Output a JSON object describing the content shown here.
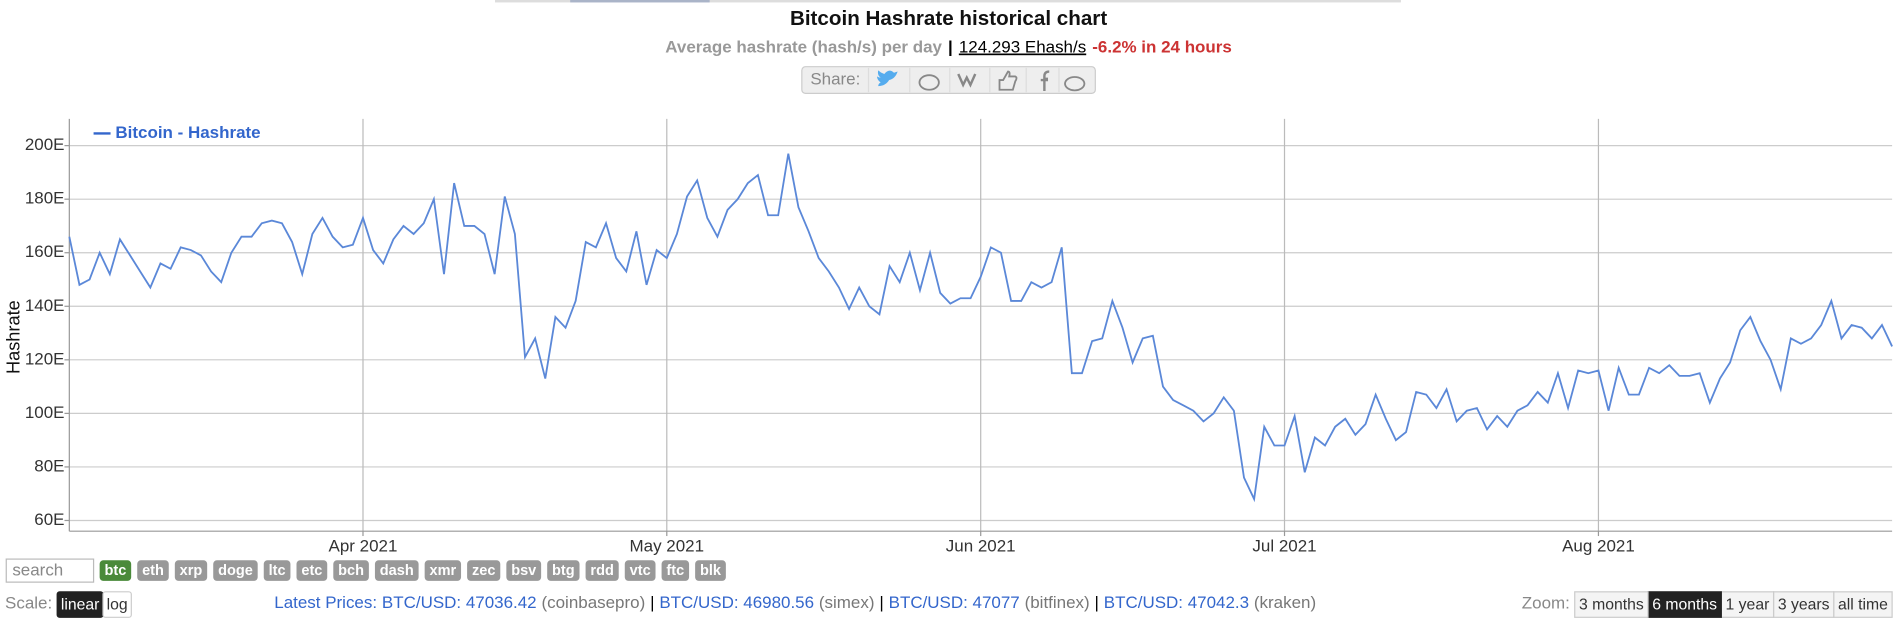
{
  "header": {
    "title": "Bitcoin Hashrate historical chart",
    "subtitle": "Average hashrate (hash/s) per day",
    "separator": "|",
    "current_value": "124.293 Ehash/s",
    "change": "-6.2% in 24 hours"
  },
  "share": {
    "label": "Share:"
  },
  "chart_data": {
    "type": "line",
    "categories": [
      null,
      null,
      null,
      null,
      null,
      null,
      null,
      null,
      null,
      null,
      null,
      null,
      null,
      null,
      null,
      null,
      null,
      null,
      null,
      null,
      null,
      null,
      null,
      null,
      null,
      null,
      null,
      null,
      null,
      "Apr 2021",
      null,
      null,
      null,
      null,
      null,
      null,
      null,
      null,
      null,
      null,
      null,
      null,
      null,
      null,
      null,
      null,
      null,
      null,
      null,
      null,
      null,
      null,
      null,
      null,
      null,
      null,
      null,
      null,
      null,
      "May 2021",
      null,
      null,
      null,
      null,
      null,
      null,
      null,
      null,
      null,
      null,
      null,
      null,
      null,
      null,
      null,
      null,
      null,
      null,
      null,
      null,
      null,
      null,
      null,
      null,
      null,
      null,
      null,
      null,
      null,
      null,
      "Jun 2021",
      null,
      null,
      null,
      null,
      null,
      null,
      null,
      null,
      null,
      null,
      null,
      null,
      null,
      null,
      null,
      null,
      null,
      null,
      null,
      null,
      null,
      null,
      null,
      null,
      null,
      null,
      null,
      null,
      null,
      "Jul 2021",
      null,
      null,
      null,
      null,
      null,
      null,
      null,
      null,
      null,
      null,
      null,
      null,
      null,
      null,
      null,
      null,
      null,
      null,
      null,
      null,
      null,
      null,
      null,
      null,
      null,
      null,
      null,
      null,
      null,
      null,
      "Aug 2021",
      null,
      null,
      null,
      null,
      null,
      null,
      null,
      null,
      null,
      null,
      null,
      null,
      null,
      null,
      null,
      null,
      null,
      null,
      null,
      null,
      null,
      null,
      null,
      null,
      null,
      null,
      null,
      null,
      null
    ],
    "series": [
      {
        "name": "Bitcoin - Hashrate",
        "color": "#5b88d8",
        "values": [
          166,
          148,
          150,
          160,
          152,
          165,
          159,
          153,
          147,
          156,
          154,
          162,
          161,
          159,
          153,
          149,
          160,
          166,
          166,
          171,
          172,
          171,
          164,
          152,
          167,
          173,
          166,
          162,
          163,
          173,
          161,
          156,
          165,
          170,
          167,
          171,
          180,
          152,
          186,
          170,
          170,
          167,
          152,
          181,
          167,
          121,
          128,
          113,
          136,
          132,
          142,
          164,
          162,
          171,
          158,
          153,
          168,
          148,
          161,
          158,
          167,
          181,
          187,
          173,
          166,
          176,
          180,
          186,
          189,
          174,
          174,
          197,
          177,
          168,
          158,
          153,
          147,
          139,
          147,
          140,
          137,
          155,
          149,
          160,
          146,
          160,
          145,
          141,
          143,
          143,
          151,
          162,
          160,
          142,
          142,
          149,
          147,
          149,
          162,
          115,
          115,
          127,
          128,
          142,
          132,
          119,
          128,
          129,
          110,
          105,
          103,
          101,
          97,
          100,
          106,
          101,
          76,
          68,
          95,
          88,
          88,
          99,
          78,
          91,
          88,
          95,
          98,
          92,
          96,
          107,
          98,
          90,
          93,
          108,
          107,
          102,
          109,
          97,
          101,
          102,
          94,
          99,
          95,
          101,
          103,
          108,
          104,
          115,
          102,
          116,
          115,
          116,
          101,
          117,
          107,
          107,
          117,
          115,
          118,
          114,
          114,
          115,
          104,
          113,
          119,
          131,
          136,
          127,
          120,
          109,
          128,
          126,
          128,
          133,
          142,
          128,
          133,
          132,
          128,
          133,
          125
        ]
      }
    ],
    "y_label": "Hashrate",
    "ylim": [
      56,
      210
    ],
    "yticks": [
      {
        "value": 60,
        "label": "60E"
      },
      {
        "value": 80,
        "label": "80E"
      },
      {
        "value": 100,
        "label": "100E"
      },
      {
        "value": 120,
        "label": "120E"
      },
      {
        "value": 140,
        "label": "140E"
      },
      {
        "value": 160,
        "label": "160E"
      },
      {
        "value": 180,
        "label": "180E"
      },
      {
        "value": 200,
        "label": "200E"
      }
    ],
    "grid": true,
    "log_scale": false,
    "legend": "top-left"
  },
  "coins": {
    "search_placeholder": "search",
    "items": [
      "btc",
      "eth",
      "xrp",
      "doge",
      "ltc",
      "etc",
      "bch",
      "dash",
      "xmr",
      "zec",
      "bsv",
      "btg",
      "rdd",
      "vtc",
      "ftc",
      "blk"
    ],
    "active": "btc"
  },
  "scale": {
    "label": "Scale:",
    "options": [
      "linear",
      "log"
    ],
    "active": "linear"
  },
  "prices": {
    "label": "Latest Prices:",
    "separator": "|",
    "items": [
      {
        "price": "BTC/USD: 47036.42",
        "source": "(coinbasepro)"
      },
      {
        "price": "BTC/USD: 46980.56",
        "source": "(simex)"
      },
      {
        "price": "BTC/USD: 47077",
        "source": "(bitfinex)"
      },
      {
        "price": "BTC/USD: 47042.3",
        "source": "(kraken)"
      }
    ]
  },
  "zoom": {
    "label": "Zoom:",
    "options": [
      "3 months",
      "6 months",
      "1 year",
      "3 years",
      "all time"
    ],
    "active": "6 months"
  }
}
